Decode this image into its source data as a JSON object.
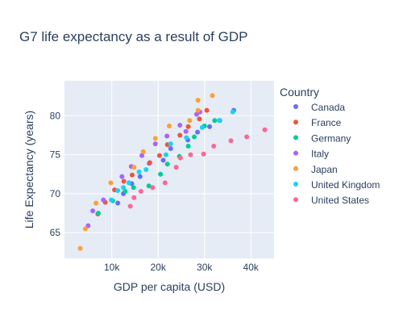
{
  "chart_data": {
    "type": "scatter",
    "title": "G7 life expectancy as a result of GDP",
    "xlabel": "GDP per capita (USD)",
    "ylabel": "Life Expectancy (years)",
    "xlim": [
      -200,
      45000
    ],
    "ylim": [
      61.7,
      84.5
    ],
    "xticks": [
      10000,
      20000,
      30000,
      40000
    ],
    "xtick_labels": [
      "10k",
      "20k",
      "30k",
      "40k"
    ],
    "yticks": [
      65,
      70,
      75,
      80
    ],
    "ytick_labels": [
      "65",
      "70",
      "75",
      "80"
    ],
    "grid": true,
    "legend_title": "Country",
    "legend_position": "right",
    "series": [
      {
        "name": "Canada",
        "color": "#636efa",
        "points": [
          [
            11300,
            68.8
          ],
          [
            12500,
            70.0
          ],
          [
            14300,
            71.3
          ],
          [
            16100,
            72.2
          ],
          [
            18100,
            73.9
          ],
          [
            21100,
            74.3
          ],
          [
            22700,
            75.8
          ],
          [
            26400,
            76.9
          ],
          [
            28500,
            77.9
          ],
          [
            31100,
            78.6
          ],
          [
            33300,
            79.4
          ],
          [
            36300,
            80.7
          ]
        ]
      },
      {
        "name": "France",
        "color": "#ef553b",
        "points": [
          [
            7000,
            67.4
          ],
          [
            8600,
            68.9
          ],
          [
            10600,
            70.5
          ],
          [
            12600,
            71.6
          ],
          [
            14400,
            72.4
          ],
          [
            18200,
            74.0
          ],
          [
            20300,
            74.9
          ],
          [
            22000,
            76.3
          ],
          [
            24700,
            77.5
          ],
          [
            26500,
            78.6
          ],
          [
            28900,
            79.6
          ],
          [
            30500,
            80.7
          ]
        ]
      },
      {
        "name": "Germany",
        "color": "#00cc96",
        "points": [
          [
            7100,
            67.5
          ],
          [
            10200,
            69.1
          ],
          [
            12900,
            70.3
          ],
          [
            14700,
            70.8
          ],
          [
            18000,
            71.0
          ],
          [
            20500,
            72.5
          ],
          [
            22000,
            73.8
          ],
          [
            24600,
            74.8
          ],
          [
            26500,
            76.1
          ],
          [
            27800,
            77.3
          ],
          [
            30000,
            78.7
          ],
          [
            32200,
            79.4
          ]
        ]
      },
      {
        "name": "Italy",
        "color": "#ab63fa",
        "points": [
          [
            4900,
            65.9
          ],
          [
            5900,
            67.8
          ],
          [
            8200,
            69.2
          ],
          [
            12200,
            72.2
          ],
          [
            14200,
            73.5
          ],
          [
            16500,
            74.9
          ],
          [
            19400,
            76.4
          ],
          [
            21900,
            77.4
          ],
          [
            24700,
            78.8
          ],
          [
            26000,
            78.0
          ],
          [
            28300,
            80.2
          ],
          [
            29000,
            80.5
          ]
        ]
      },
      {
        "name": "Japan",
        "color": "#fea032",
        "points": [
          [
            3200,
            63.0
          ],
          [
            4300,
            65.5
          ],
          [
            6600,
            68.8
          ],
          [
            9800,
            71.4
          ],
          [
            14800,
            73.4
          ],
          [
            16800,
            75.4
          ],
          [
            19400,
            77.1
          ],
          [
            22400,
            78.7
          ],
          [
            26800,
            79.4
          ],
          [
            28600,
            80.7
          ],
          [
            28600,
            82.0
          ],
          [
            31700,
            82.6
          ]
        ]
      },
      {
        "name": "United Kingdom",
        "color": "#19d3f3",
        "points": [
          [
            9900,
            69.2
          ],
          [
            11300,
            70.4
          ],
          [
            12500,
            70.8
          ],
          [
            13700,
            71.4
          ],
          [
            15900,
            72.8
          ],
          [
            17400,
            73.1
          ],
          [
            21700,
            75.0
          ],
          [
            22700,
            76.4
          ],
          [
            26100,
            77.2
          ],
          [
            29500,
            78.5
          ],
          [
            33200,
            79.4
          ],
          [
            36100,
            80.5
          ]
        ]
      },
      {
        "name": "United States",
        "color": "#fe6692",
        "points": [
          [
            14000,
            68.4
          ],
          [
            14800,
            69.5
          ],
          [
            16300,
            70.3
          ],
          [
            18800,
            70.8
          ],
          [
            21500,
            71.4
          ],
          [
            23900,
            73.4
          ],
          [
            24800,
            74.6
          ],
          [
            27000,
            75.0
          ],
          [
            29800,
            75.1
          ],
          [
            32000,
            76.1
          ],
          [
            35700,
            76.8
          ],
          [
            39100,
            77.3
          ],
          [
            43000,
            78.2
          ]
        ]
      }
    ]
  }
}
